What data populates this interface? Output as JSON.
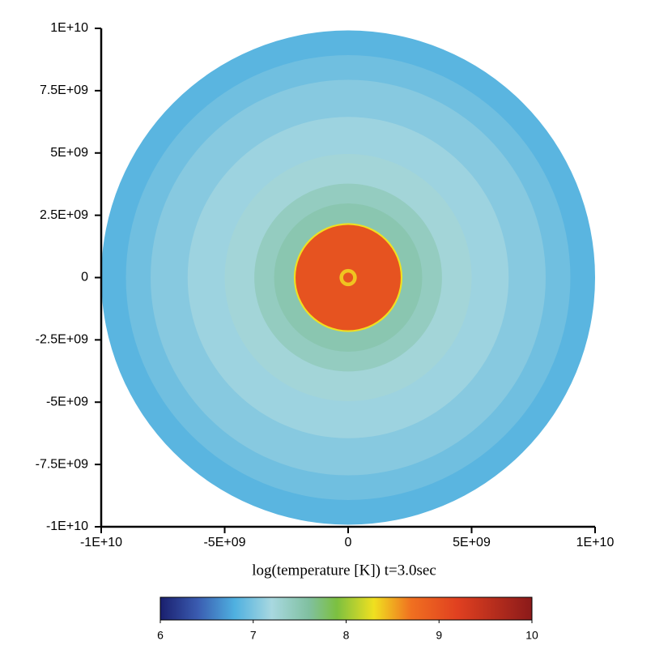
{
  "chart_data": {
    "type": "contour",
    "xlabel": "log(temperature [K])  t=3.0sec",
    "xlim": [
      -10000000000,
      10000000000
    ],
    "ylim": [
      -10000000000,
      10000000000
    ],
    "xticks": [
      {
        "value": -10000000000,
        "label": "-1E+10"
      },
      {
        "value": -5000000000,
        "label": "-5E+09"
      },
      0,
      {
        "value": 5000000000,
        "label": "5E+09"
      },
      {
        "value": 10000000000,
        "label": "1E+10"
      }
    ],
    "yticks": [
      {
        "value": -10000000000,
        "label": "-1E+10"
      },
      {
        "value": -7500000000,
        "label": "-7.5E+09"
      },
      {
        "value": -5000000000,
        "label": "-5E+09"
      },
      {
        "value": -2500000000,
        "label": "-2.5E+09"
      },
      0,
      {
        "value": 2500000000,
        "label": "2.5E+09"
      },
      {
        "value": 5000000000,
        "label": "5E+09"
      },
      {
        "value": 7500000000,
        "label": "7.5E+09"
      },
      {
        "value": 10000000000,
        "label": "1E+10"
      }
    ],
    "contours": [
      {
        "radius": 10000000000,
        "value": 6.85
      },
      {
        "radius": 9000000000,
        "value": 6.95
      },
      {
        "radius": 8000000000,
        "value": 7.05
      },
      {
        "radius": 6500000000,
        "value": 7.15
      },
      {
        "radius": 5000000000,
        "value": 7.25
      },
      {
        "radius": 3800000000,
        "value": 7.4
      },
      {
        "radius": 3000000000,
        "value": 7.5
      },
      {
        "radius": 2200000000,
        "value": 8.3
      },
      {
        "radius": 2130000000,
        "value": 9.0
      },
      {
        "radius": 350000000,
        "value": 8.4
      },
      {
        "radius": 200000000,
        "value": 9.0
      }
    ],
    "colorbar": {
      "lim": [
        6,
        10
      ],
      "ticks": [
        6,
        7,
        8,
        9,
        10
      ],
      "stops": [
        {
          "value": 6,
          "color": "#1a1f6e"
        },
        {
          "value": 6.4,
          "color": "#3a5bb0"
        },
        {
          "value": 6.8,
          "color": "#4fb0e0"
        },
        {
          "value": 7.2,
          "color": "#a8d8e0"
        },
        {
          "value": 7.6,
          "color": "#80c0a0"
        },
        {
          "value": 7.9,
          "color": "#7cc040"
        },
        {
          "value": 8.3,
          "color": "#f0e020"
        },
        {
          "value": 8.7,
          "color": "#f07020"
        },
        {
          "value": 9.2,
          "color": "#e04020"
        },
        {
          "value": 10,
          "color": "#8b1a1a"
        }
      ]
    }
  }
}
